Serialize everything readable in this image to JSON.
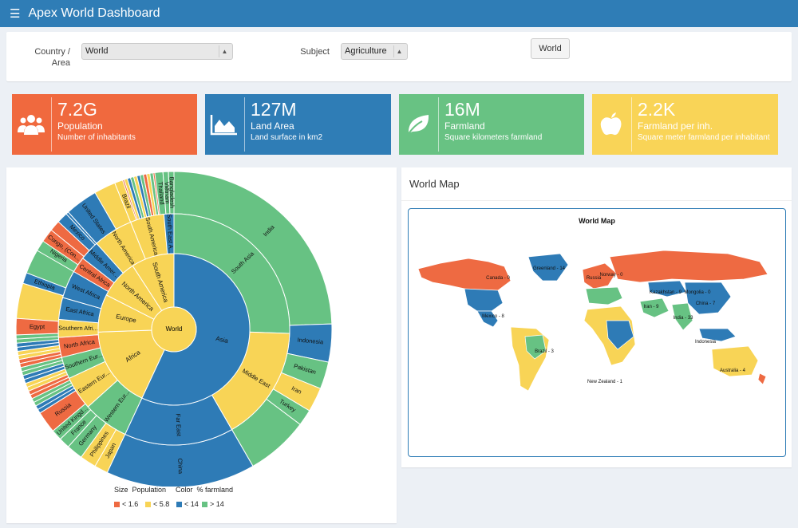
{
  "app": {
    "title": "Apex World Dashboard",
    "menu_icon": "hamburger-icon"
  },
  "filters": {
    "country_label_1": "Country /",
    "country_label_2": "Area",
    "country_value": "World",
    "subject_label": "Subject",
    "subject_value": "Agriculture",
    "button_label": "World"
  },
  "kpis": [
    {
      "value": "7.2G",
      "name": "Population",
      "desc": "Number of inhabitants",
      "color": "#f0693e",
      "icon": "users-icon"
    },
    {
      "value": "127M",
      "name": "Land Area",
      "desc": "Land surface in km2",
      "color": "#2f7db6",
      "icon": "area-chart-icon"
    },
    {
      "value": "16M",
      "name": "Farmland",
      "desc": "Square kilometers farmland",
      "color": "#68c283",
      "icon": "leaf-icon"
    },
    {
      "value": "2.2K",
      "name": "Farmland per inh.",
      "desc": "Square meter farmland per inhabitant",
      "color": "#f9d457",
      "icon": "apple-icon"
    }
  ],
  "colors": {
    "red": "#ee6a42",
    "yellow": "#f8d456",
    "blue": "#2e7bb6",
    "green": "#67c283"
  },
  "sunburst": {
    "center": "World",
    "ring1": [
      {
        "label": "Asia",
        "color": "blue"
      },
      {
        "label": "Africa",
        "color": "yellow"
      },
      {
        "label": "Europe",
        "color": "yellow"
      },
      {
        "label": "North America",
        "color": "yellow"
      },
      {
        "label": "South America",
        "color": "yellow"
      }
    ],
    "ring2": [
      {
        "label": "South Asia",
        "color": "green"
      },
      {
        "label": "Middle East",
        "color": "yellow"
      },
      {
        "label": "Far East",
        "color": "blue"
      },
      {
        "label": "Western Eur...",
        "color": "green"
      },
      {
        "label": "Eastern Eur...",
        "color": "yellow"
      },
      {
        "label": "Southern Eur...",
        "color": "green"
      },
      {
        "label": "North Africa",
        "color": "red"
      },
      {
        "label": "Southern Afri...",
        "color": "yellow"
      },
      {
        "label": "East Africa",
        "color": "blue"
      },
      {
        "label": "West Africa",
        "color": "blue"
      },
      {
        "label": "Central Africa",
        "color": "red"
      },
      {
        "label": "Middle Amer...",
        "color": "blue"
      },
      {
        "label": "North America",
        "color": "yellow"
      },
      {
        "label": "South America",
        "color": "yellow"
      },
      {
        "label": "South East A...",
        "color": "blue"
      }
    ],
    "ring3": [
      {
        "label": "India",
        "color": "green"
      },
      {
        "label": "Indonesia",
        "color": "blue"
      },
      {
        "label": "Pakistan",
        "color": "green"
      },
      {
        "label": "Iran",
        "color": "yellow"
      },
      {
        "label": "Turkey",
        "color": "green"
      },
      {
        "label": "China",
        "color": "blue"
      },
      {
        "label": "Japan",
        "color": "yellow"
      },
      {
        "label": "Philippines",
        "color": "yellow"
      },
      {
        "label": "Germany",
        "color": "green"
      },
      {
        "label": "France",
        "color": "green"
      },
      {
        "label": "United Kingd...",
        "color": "green"
      },
      {
        "label": "Russia",
        "color": "red"
      },
      {
        "label": "Egypt",
        "color": "red"
      },
      {
        "label": "Ethiopia",
        "color": "blue"
      },
      {
        "label": "Nigeria",
        "color": "green"
      },
      {
        "label": "Congo, (Con...",
        "color": "red"
      },
      {
        "label": "Mexico",
        "color": "blue"
      },
      {
        "label": "United States",
        "color": "blue"
      },
      {
        "label": "Brazil",
        "color": "yellow"
      },
      {
        "label": "Thailand",
        "color": "green"
      },
      {
        "label": "Vietnam",
        "color": "green"
      },
      {
        "label": "Bangladesh",
        "color": "green"
      }
    ]
  },
  "legend": {
    "size_label": "Size",
    "size_value": "Population",
    "color_label": "Color",
    "color_value": "% farmland",
    "items": [
      {
        "label": "< 1.6",
        "color": "#ee6a42"
      },
      {
        "label": "< 5.8",
        "color": "#f8d456"
      },
      {
        "label": "< 14",
        "color": "#2e7bb6"
      },
      {
        "label": "> 14",
        "color": "#67c283"
      }
    ]
  },
  "map": {
    "panel_title": "World Map",
    "chart_title": "World Map",
    "labels": [
      {
        "text": "Greenland - 14"
      },
      {
        "text": "Canada - 0"
      },
      {
        "text": "Russia"
      },
      {
        "text": "Norway - 0"
      },
      {
        "text": "Kazakhstan - 9"
      },
      {
        "text": "Mongolia - 0"
      },
      {
        "text": "China - 7"
      },
      {
        "text": "Iran - 9"
      },
      {
        "text": "India - 33"
      },
      {
        "text": "Mexico - 8"
      },
      {
        "text": "Brazil - 3"
      },
      {
        "text": "Indonesia"
      },
      {
        "text": "Australia - 4"
      },
      {
        "text": "New Zealand - 1"
      }
    ]
  }
}
